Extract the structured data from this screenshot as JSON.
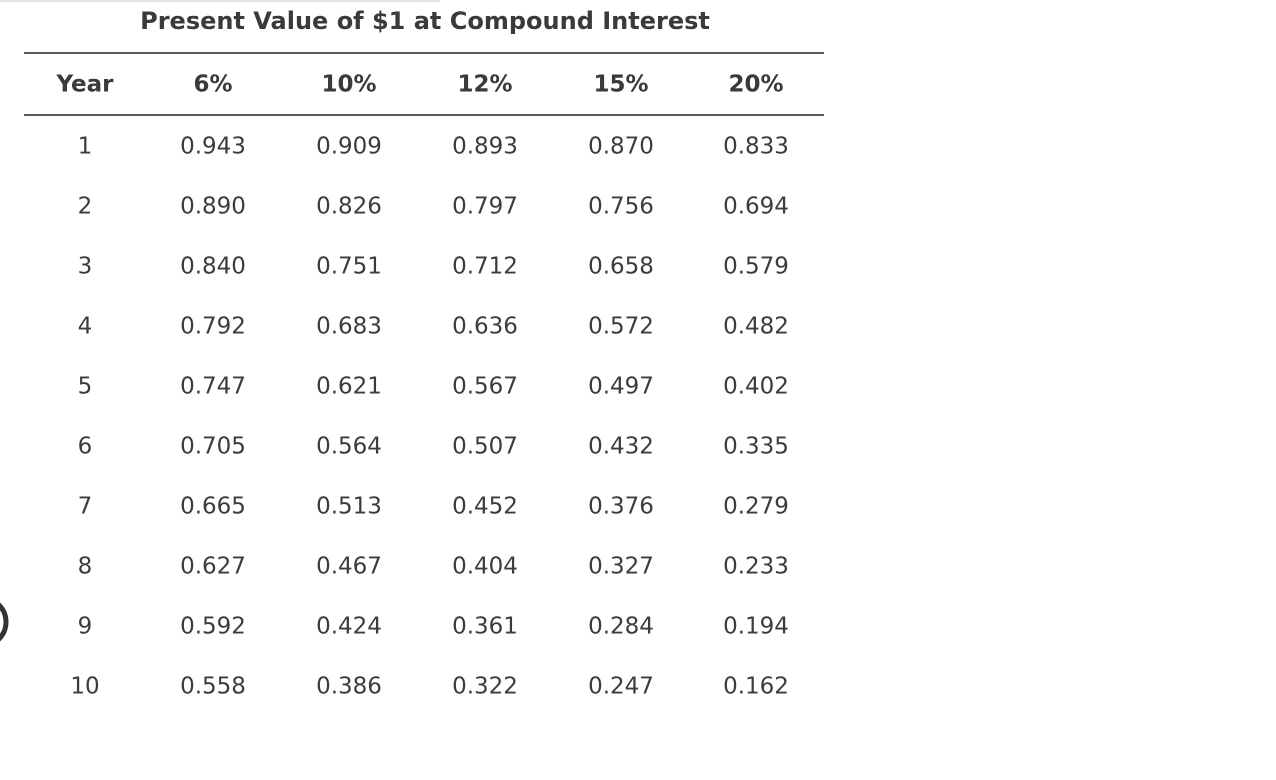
{
  "table": {
    "title": "Present Value of $1 at Compound Interest",
    "headers": [
      "Year",
      "6%",
      "10%",
      "12%",
      "15%",
      "20%"
    ],
    "rows": [
      [
        "1",
        "0.943",
        "0.909",
        "0.893",
        "0.870",
        "0.833"
      ],
      [
        "2",
        "0.890",
        "0.826",
        "0.797",
        "0.756",
        "0.694"
      ],
      [
        "3",
        "0.840",
        "0.751",
        "0.712",
        "0.658",
        "0.579"
      ],
      [
        "4",
        "0.792",
        "0.683",
        "0.636",
        "0.572",
        "0.482"
      ],
      [
        "5",
        "0.747",
        "0.621",
        "0.567",
        "0.497",
        "0.402"
      ],
      [
        "6",
        "0.705",
        "0.564",
        "0.507",
        "0.432",
        "0.335"
      ],
      [
        "7",
        "0.665",
        "0.513",
        "0.452",
        "0.376",
        "0.279"
      ],
      [
        "8",
        "0.627",
        "0.467",
        "0.404",
        "0.327",
        "0.233"
      ],
      [
        "9",
        "0.592",
        "0.424",
        "0.361",
        "0.284",
        "0.194"
      ],
      [
        "10",
        "0.558",
        "0.386",
        "0.322",
        "0.247",
        "0.162"
      ]
    ]
  }
}
